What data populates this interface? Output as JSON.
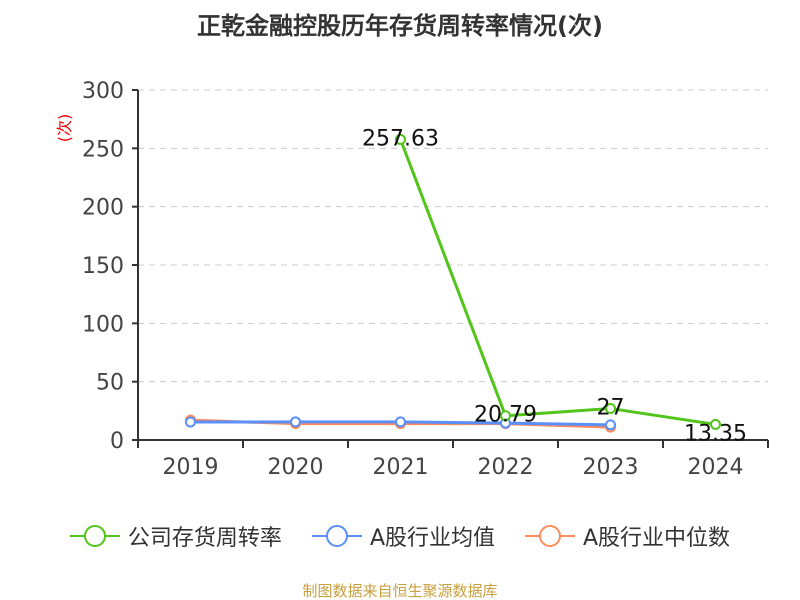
{
  "chart_data": {
    "type": "line",
    "title": "正乾金融控股历年存货周转率情况(次)",
    "ylabel": "(次)",
    "xlabel": "",
    "categories": [
      "2019",
      "2020",
      "2021",
      "2022",
      "2023",
      "2024"
    ],
    "ylim": [
      0,
      300
    ],
    "yticks": [
      0,
      50,
      100,
      150,
      200,
      250,
      300
    ],
    "grid": true,
    "legend_position": "bottom",
    "series": [
      {
        "name": "公司存货周转率",
        "color": "#52c41a",
        "values": [
          null,
          null,
          257.63,
          20.79,
          27,
          13.35
        ],
        "labels": [
          "",
          "",
          "257.63",
          "20.79",
          "27",
          "13.35"
        ]
      },
      {
        "name": "A股行业均值",
        "color": "#5b8ff9",
        "values": [
          15.4,
          15.5,
          15.5,
          14.5,
          13,
          null
        ]
      },
      {
        "name": "A股行业中位数",
        "color": "#ff8c5a",
        "values": [
          17,
          14,
          14,
          14,
          11,
          null
        ]
      }
    ]
  },
  "source": "制图数据来自恒生聚源数据库"
}
